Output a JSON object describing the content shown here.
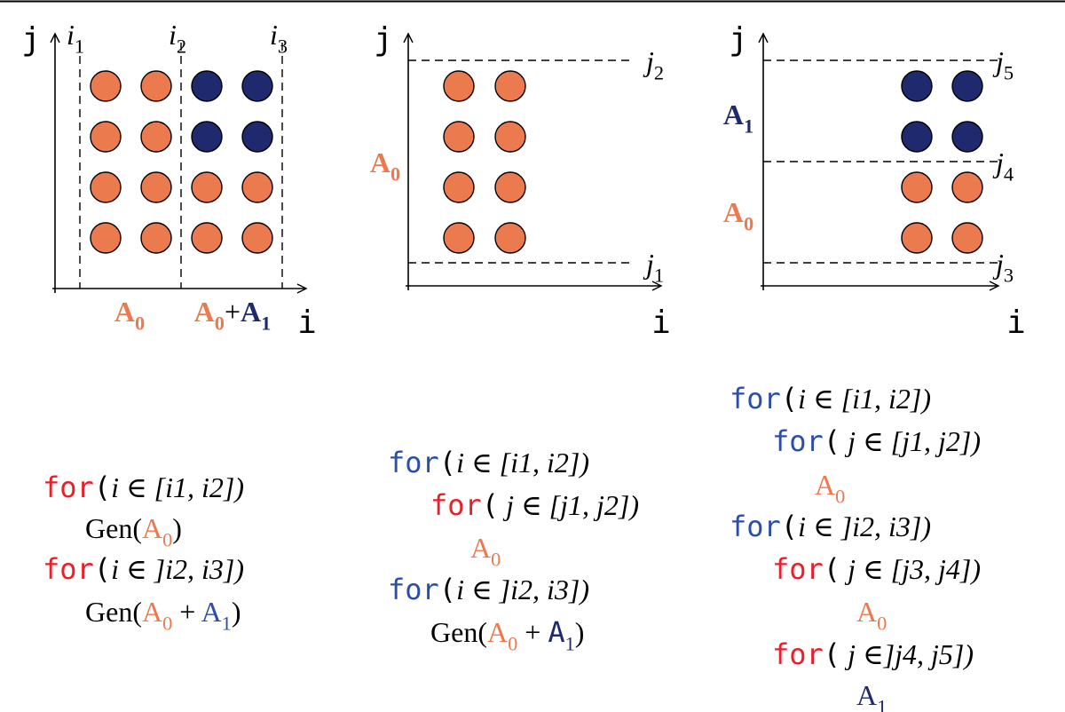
{
  "panels": [
    {
      "y_axis": "j",
      "x_axis": "i",
      "labels": [
        [
          {
            "text": "i",
            "sub": "1",
            "italic": true
          }
        ],
        [
          {
            "text": "i",
            "sub": "2",
            "italic": true
          }
        ],
        [
          {
            "text": "i",
            "sub": "3",
            "italic": true
          }
        ],
        [
          {
            "text": "A",
            "sub": "0",
            "bold": true,
            "color": "#ec7a4f"
          }
        ],
        [
          {
            "text": "A",
            "sub": "0",
            "bold": true,
            "color": "#ec7a4f"
          },
          {
            "text": "+"
          },
          {
            "text": "A",
            "sub": "1",
            "bold": true,
            "color": "#1f2a6e"
          }
        ]
      ]
    },
    {
      "y_axis": "j",
      "x_axis": "i",
      "labels": [
        [
          {
            "text": "j",
            "sub": "2",
            "italic": true
          }
        ],
        [
          {
            "text": "j",
            "sub": "1",
            "italic": true
          }
        ],
        [
          {
            "text": "A",
            "sub": "0",
            "bold": true,
            "color": "#ec7a4f"
          }
        ]
      ]
    },
    {
      "y_axis": "j",
      "x_axis": "i",
      "labels": [
        [
          {
            "text": "j",
            "sub": "5",
            "italic": true
          }
        ],
        [
          {
            "text": "j",
            "sub": "4",
            "italic": true
          }
        ],
        [
          {
            "text": "j",
            "sub": "3",
            "italic": true
          }
        ],
        [
          {
            "text": "A",
            "sub": "1",
            "bold": true,
            "color": "#1f2a6e"
          }
        ],
        [
          {
            "text": "A",
            "sub": "0",
            "bold": true,
            "color": "#ec7a4f"
          }
        ]
      ]
    }
  ],
  "code_blocks": [
    {
      "lines": [
        [
          {
            "text": "for",
            "mono": true,
            "color": "#e8202a"
          },
          {
            "text": "(",
            "mono": true
          },
          {
            "text": "i ∈ [i1, i2])",
            "italic": true
          }
        ],
        [
          {
            "text": "Gen("
          },
          {
            "text": "A",
            "sub": "0",
            "color": "#ec7a4f"
          },
          {
            "text": ")"
          }
        ],
        [
          {
            "text": "for",
            "mono": true,
            "color": "#e8202a"
          },
          {
            "text": "(",
            "mono": true
          },
          {
            "text": "i ∈ ]i2, i3])",
            "italic": true
          }
        ],
        [
          {
            "text": "Gen("
          },
          {
            "text": "A",
            "sub": "0",
            "color": "#ec7a4f"
          },
          {
            "text": " + "
          },
          {
            "text": "A",
            "sub": "1",
            "color": "#2b4fa8"
          },
          {
            "text": ")"
          }
        ]
      ]
    },
    {
      "lines": [
        [
          {
            "text": "for",
            "mono": true,
            "color": "#2b4fa8"
          },
          {
            "text": "(",
            "mono": true
          },
          {
            "text": "i ∈ [i1, i2])",
            "italic": true
          }
        ],
        [
          {
            "text": "for",
            "mono": true,
            "color": "#e8202a"
          },
          {
            "text": "(",
            "mono": true
          },
          {
            "text": " j ∈ [j1, j2])",
            "italic": true
          }
        ],
        [
          {
            "text": "A",
            "sub": "0",
            "color": "#ec7a4f"
          }
        ],
        [
          {
            "text": "for",
            "mono": true,
            "color": "#2b4fa8"
          },
          {
            "text": "(",
            "mono": true
          },
          {
            "text": "i ∈ ]i2, i3])",
            "italic": true
          }
        ],
        [
          {
            "text": "Gen("
          },
          {
            "text": "A",
            "sub": "0",
            "color": "#ec7a4f"
          },
          {
            "text": " + "
          },
          {
            "text": "A",
            "sub": "1",
            "mono": true,
            "color": "#1f2a6e"
          },
          {
            "text": ")"
          }
        ]
      ]
    },
    {
      "lines": [
        [
          {
            "text": "for",
            "mono": true,
            "color": "#2b4fa8"
          },
          {
            "text": "(",
            "mono": true
          },
          {
            "text": "i ∈ [i1, i2])",
            "italic": true
          }
        ],
        [
          {
            "text": "for",
            "mono": true,
            "color": "#2b4fa8"
          },
          {
            "text": "(",
            "mono": true
          },
          {
            "text": " j ∈ [j1, j2])",
            "italic": true
          }
        ],
        [
          {
            "text": "A",
            "sub": "0",
            "color": "#ec7a4f"
          }
        ],
        [
          {
            "text": "for",
            "mono": true,
            "color": "#2b4fa8"
          },
          {
            "text": "(",
            "mono": true
          },
          {
            "text": "i ∈ ]i2, i3])",
            "italic": true
          }
        ],
        [
          {
            "text": "for",
            "mono": true,
            "color": "#e8202a"
          },
          {
            "text": "(",
            "mono": true
          },
          {
            "text": " j ∈ [j3, j4])",
            "italic": true
          }
        ],
        [
          {
            "text": "A",
            "sub": "0",
            "color": "#ec7a4f"
          }
        ],
        [
          {
            "text": "for",
            "mono": true,
            "color": "#e8202a"
          },
          {
            "text": "(",
            "mono": true
          },
          {
            "text": " j ∈]j4, j5])",
            "italic": true
          }
        ],
        [
          {
            "text": "A",
            "sub": "1",
            "color": "#1f2a6e"
          }
        ]
      ]
    }
  ]
}
